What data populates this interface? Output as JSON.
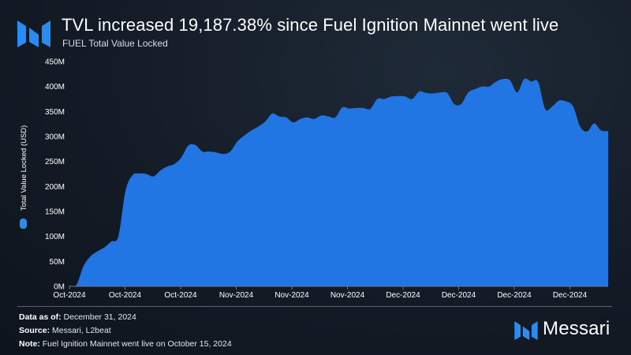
{
  "header": {
    "title": "TVL increased 19,187.38% since Fuel Ignition Mainnet went live",
    "subtitle": "FUEL Total Value Locked"
  },
  "footer": {
    "data_as_of_label": "Data as of:",
    "data_as_of_value": "December 31, 2024",
    "source_label": "Source:",
    "source_value": "Messari, L2beat",
    "note_label": "Note:",
    "note_value": "Fuel Ignition Mainnet went live on October 15, 2024",
    "brand_name": "Messari"
  },
  "colors": {
    "area": "#2176e3",
    "axis": "#6b7583",
    "text": "#ffffff"
  },
  "icons": {
    "brand_logo": "messari-logo-icon",
    "legend_marker": "legend-marker-icon"
  },
  "chart_data": {
    "type": "area",
    "title": "FUEL Total Value Locked",
    "ylabel": "Total Value Locked (USD)",
    "xlabel": "",
    "ylim": [
      0,
      450
    ],
    "yticks": [
      "0M",
      "50M",
      "100M",
      "150M",
      "200M",
      "250M",
      "300M",
      "350M",
      "400M",
      "450M"
    ],
    "xticks": [
      "Oct-2024",
      "Oct-2024",
      "Oct-2024",
      "Nov-2024",
      "Nov-2024",
      "Nov-2024",
      "Dec-2024",
      "Dec-2024",
      "Dec-2024",
      "Dec-2024"
    ],
    "legend": "left-vertical",
    "grid": false,
    "series": [
      {
        "name": "Total Value Locked (USD)",
        "values": [
          2,
          3,
          40,
          60,
          70,
          78,
          90,
          100,
          190,
          222,
          226,
          225,
          220,
          232,
          240,
          245,
          258,
          282,
          283,
          270,
          270,
          268,
          265,
          270,
          290,
          302,
          312,
          320,
          330,
          346,
          340,
          338,
          328,
          335,
          338,
          335,
          342,
          340,
          338,
          358,
          356,
          357,
          357,
          355,
          375,
          375,
          380,
          381,
          380,
          375,
          390,
          387,
          386,
          388,
          387,
          365,
          365,
          388,
          395,
          400,
          400,
          410,
          415,
          412,
          388,
          415,
          410,
          409,
          355,
          360,
          372,
          370,
          360,
          320,
          310,
          326,
          312,
          311
        ]
      }
    ]
  }
}
